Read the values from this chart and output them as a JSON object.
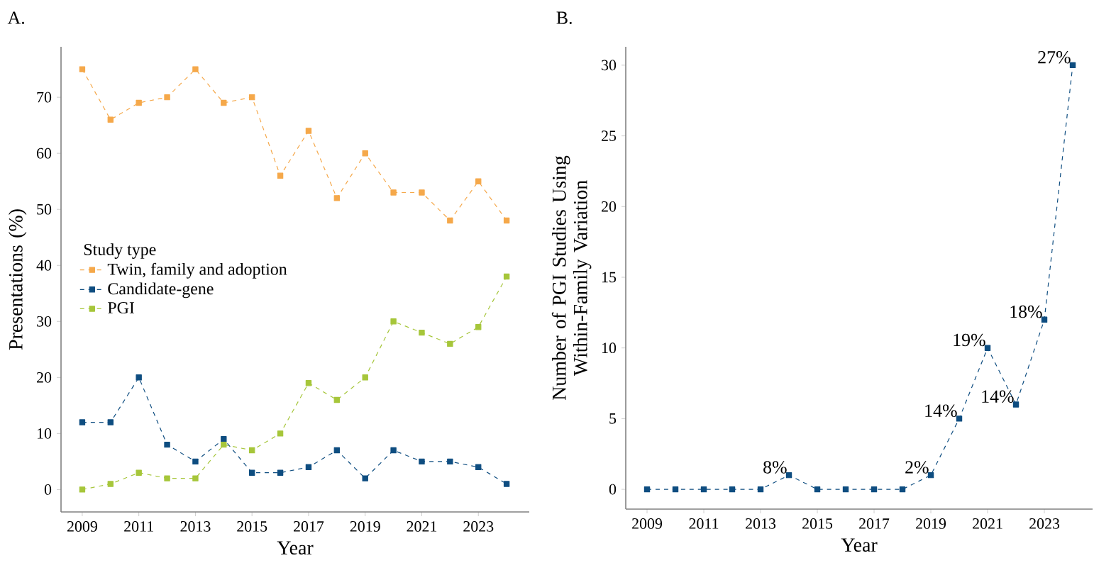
{
  "chart_data": [
    {
      "type": "line",
      "title": "A.",
      "xlabel": "Year",
      "ylabel": "Presentations (%)",
      "legend_title": "Study type",
      "x": [
        2009,
        2010,
        2011,
        2012,
        2013,
        2014,
        2015,
        2016,
        2017,
        2018,
        2019,
        2020,
        2021,
        2022,
        2023,
        2024
      ],
      "series": [
        {
          "name": "Twin, family and adoption",
          "color": "#f5a84a",
          "values": [
            75,
            66,
            69,
            70,
            75,
            69,
            70,
            56,
            64,
            52,
            60,
            53,
            53,
            48,
            55,
            48
          ]
        },
        {
          "name": "Candidate-gene",
          "color": "#0e4d80",
          "values": [
            12,
            12,
            20,
            8,
            5,
            9,
            3,
            3,
            4,
            7,
            2,
            7,
            5,
            5,
            4,
            1
          ]
        },
        {
          "name": "PGI",
          "color": "#a6c63a",
          "values": [
            0,
            1,
            3,
            2,
            2,
            8,
            7,
            10,
            19,
            16,
            20,
            30,
            28,
            26,
            29,
            38
          ]
        }
      ],
      "xlim": [
        2008.25,
        2024.8
      ],
      "ylim": [
        -4,
        79
      ],
      "xticks": [
        2009,
        2011,
        2013,
        2015,
        2017,
        2019,
        2021,
        2023
      ],
      "yticks": [
        0,
        10,
        20,
        30,
        40,
        50,
        60,
        70
      ],
      "legend": "left",
      "grid": false,
      "marker": "square",
      "line_style": "dashed"
    },
    {
      "type": "line",
      "title": "B.",
      "xlabel": "Year",
      "ylabel": "Number of PGI Studies Using Within-Family Variation",
      "x": [
        2009,
        2010,
        2011,
        2012,
        2013,
        2014,
        2015,
        2016,
        2017,
        2018,
        2019,
        2020,
        2021,
        2022,
        2023,
        2024
      ],
      "values": [
        0,
        0,
        0,
        0,
        0,
        1,
        0,
        0,
        0,
        0,
        1,
        5,
        10,
        6,
        12,
        30
      ],
      "annotations": [
        {
          "text": "8%",
          "x": 2014,
          "y": 1
        },
        {
          "text": "2%",
          "x": 2019,
          "y": 1
        },
        {
          "text": "14%",
          "x": 2020,
          "y": 5
        },
        {
          "text": "19%",
          "x": 2021,
          "y": 10
        },
        {
          "text": "14%",
          "x": 2022,
          "y": 6
        },
        {
          "text": "18%",
          "x": 2023,
          "y": 12
        },
        {
          "text": "27%",
          "x": 2024,
          "y": 30
        }
      ],
      "color": "#0e4d80",
      "xlim": [
        2008.25,
        2024.7
      ],
      "ylim": [
        -1.4,
        31.3
      ],
      "xticks": [
        2009,
        2011,
        2013,
        2015,
        2017,
        2019,
        2021,
        2023
      ],
      "yticks": [
        0,
        5,
        10,
        15,
        20,
        25,
        30
      ],
      "legend": false,
      "grid": false,
      "marker": "square",
      "line_style": "dashed"
    }
  ]
}
